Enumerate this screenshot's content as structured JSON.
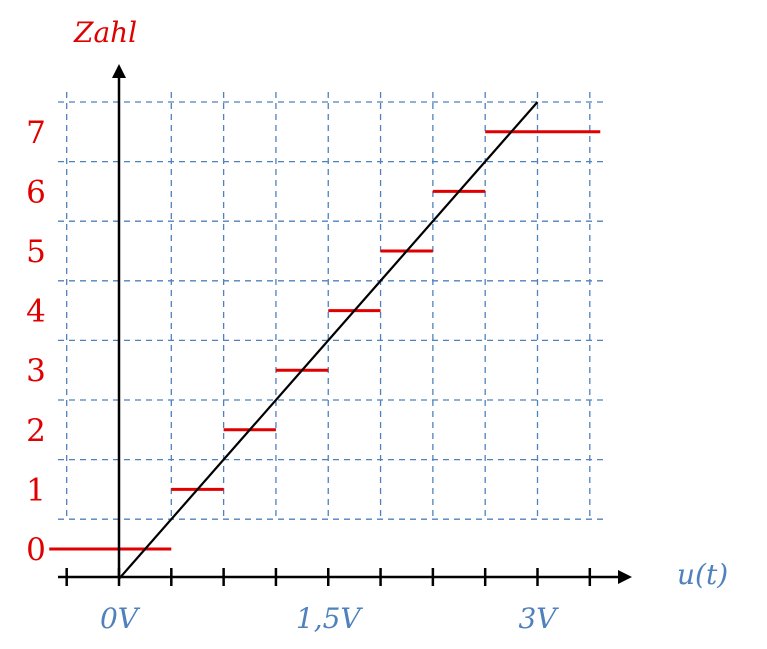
{
  "chart_data": {
    "type": "line",
    "title": "",
    "xlabel": "u(t)",
    "ylabel": "Zahl",
    "x_tick_labels": [
      {
        "x": 0,
        "label": "0V"
      },
      {
        "x": 1.5,
        "label": "1,5V"
      },
      {
        "x": 3,
        "label": "3V"
      }
    ],
    "y_tick_labels": [
      "0",
      "1",
      "2",
      "3",
      "4",
      "5",
      "6",
      "7"
    ],
    "xlim": [
      -0.375,
      3.75
    ],
    "ylim": [
      -0.5,
      7.5
    ],
    "grid": true,
    "series": [
      {
        "type": "step",
        "segments": [
          {
            "x_start": -0.5,
            "x_end": 0.375,
            "y": 0
          },
          {
            "x_start": 0.375,
            "x_end": 0.75,
            "y": 1
          },
          {
            "x_start": 0.75,
            "x_end": 1.125,
            "y": 2
          },
          {
            "x_start": 1.125,
            "x_end": 1.5,
            "y": 3
          },
          {
            "x_start": 1.5,
            "x_end": 1.875,
            "y": 4
          },
          {
            "x_start": 1.875,
            "x_end": 2.25,
            "y": 5
          },
          {
            "x_start": 2.25,
            "x_end": 2.625,
            "y": 6
          },
          {
            "x_start": 2.625,
            "x_end": 3.45,
            "y": 7
          }
        ]
      },
      {
        "type": "line",
        "points": [
          [
            0,
            -0.5
          ],
          [
            3,
            7.5
          ]
        ]
      }
    ]
  },
  "colors": {
    "steps": "#e00000",
    "grid": "#4f81bd",
    "axis": "#000000",
    "ramp": "#000000",
    "y_labels": "#e00000",
    "x_labels": "#4f81bd"
  }
}
